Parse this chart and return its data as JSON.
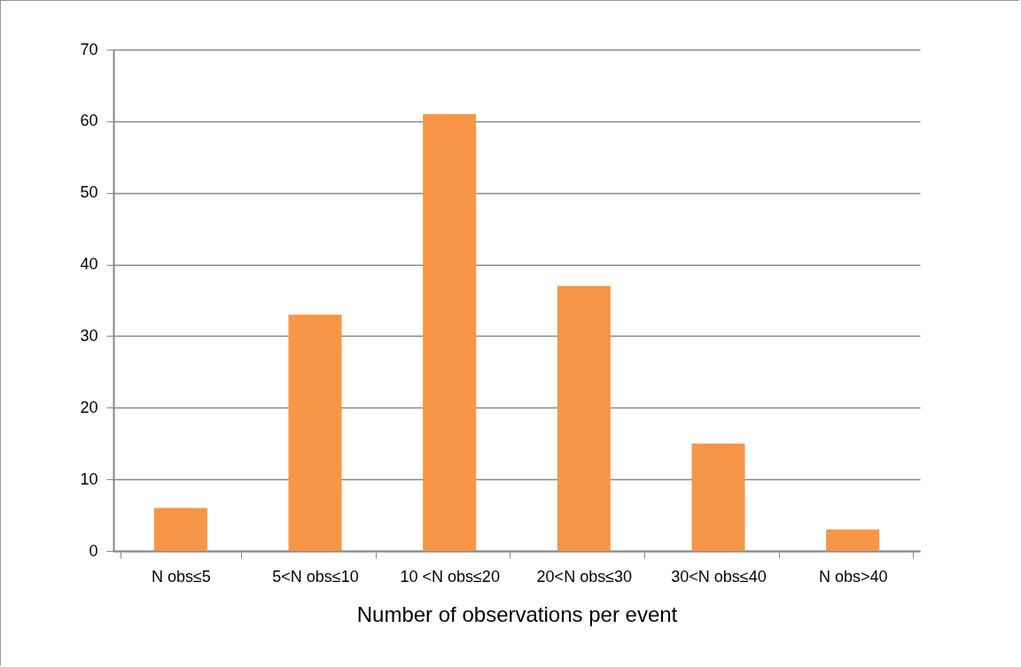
{
  "chart_data": {
    "type": "bar",
    "xlabel": "Number of observations per event",
    "categories": [
      "N obs≤5",
      "5<N obs≤10",
      "10 <N obs≤20",
      "20<N obs≤30",
      "30<N obs≤40",
      "N obs>40"
    ],
    "values": [
      6,
      33,
      61,
      37,
      15,
      3
    ],
    "color": "#f79646",
    "ylim": [
      0,
      70
    ],
    "yticks": [
      0,
      10,
      20,
      30,
      40,
      50,
      60,
      70
    ],
    "grid": "y"
  }
}
